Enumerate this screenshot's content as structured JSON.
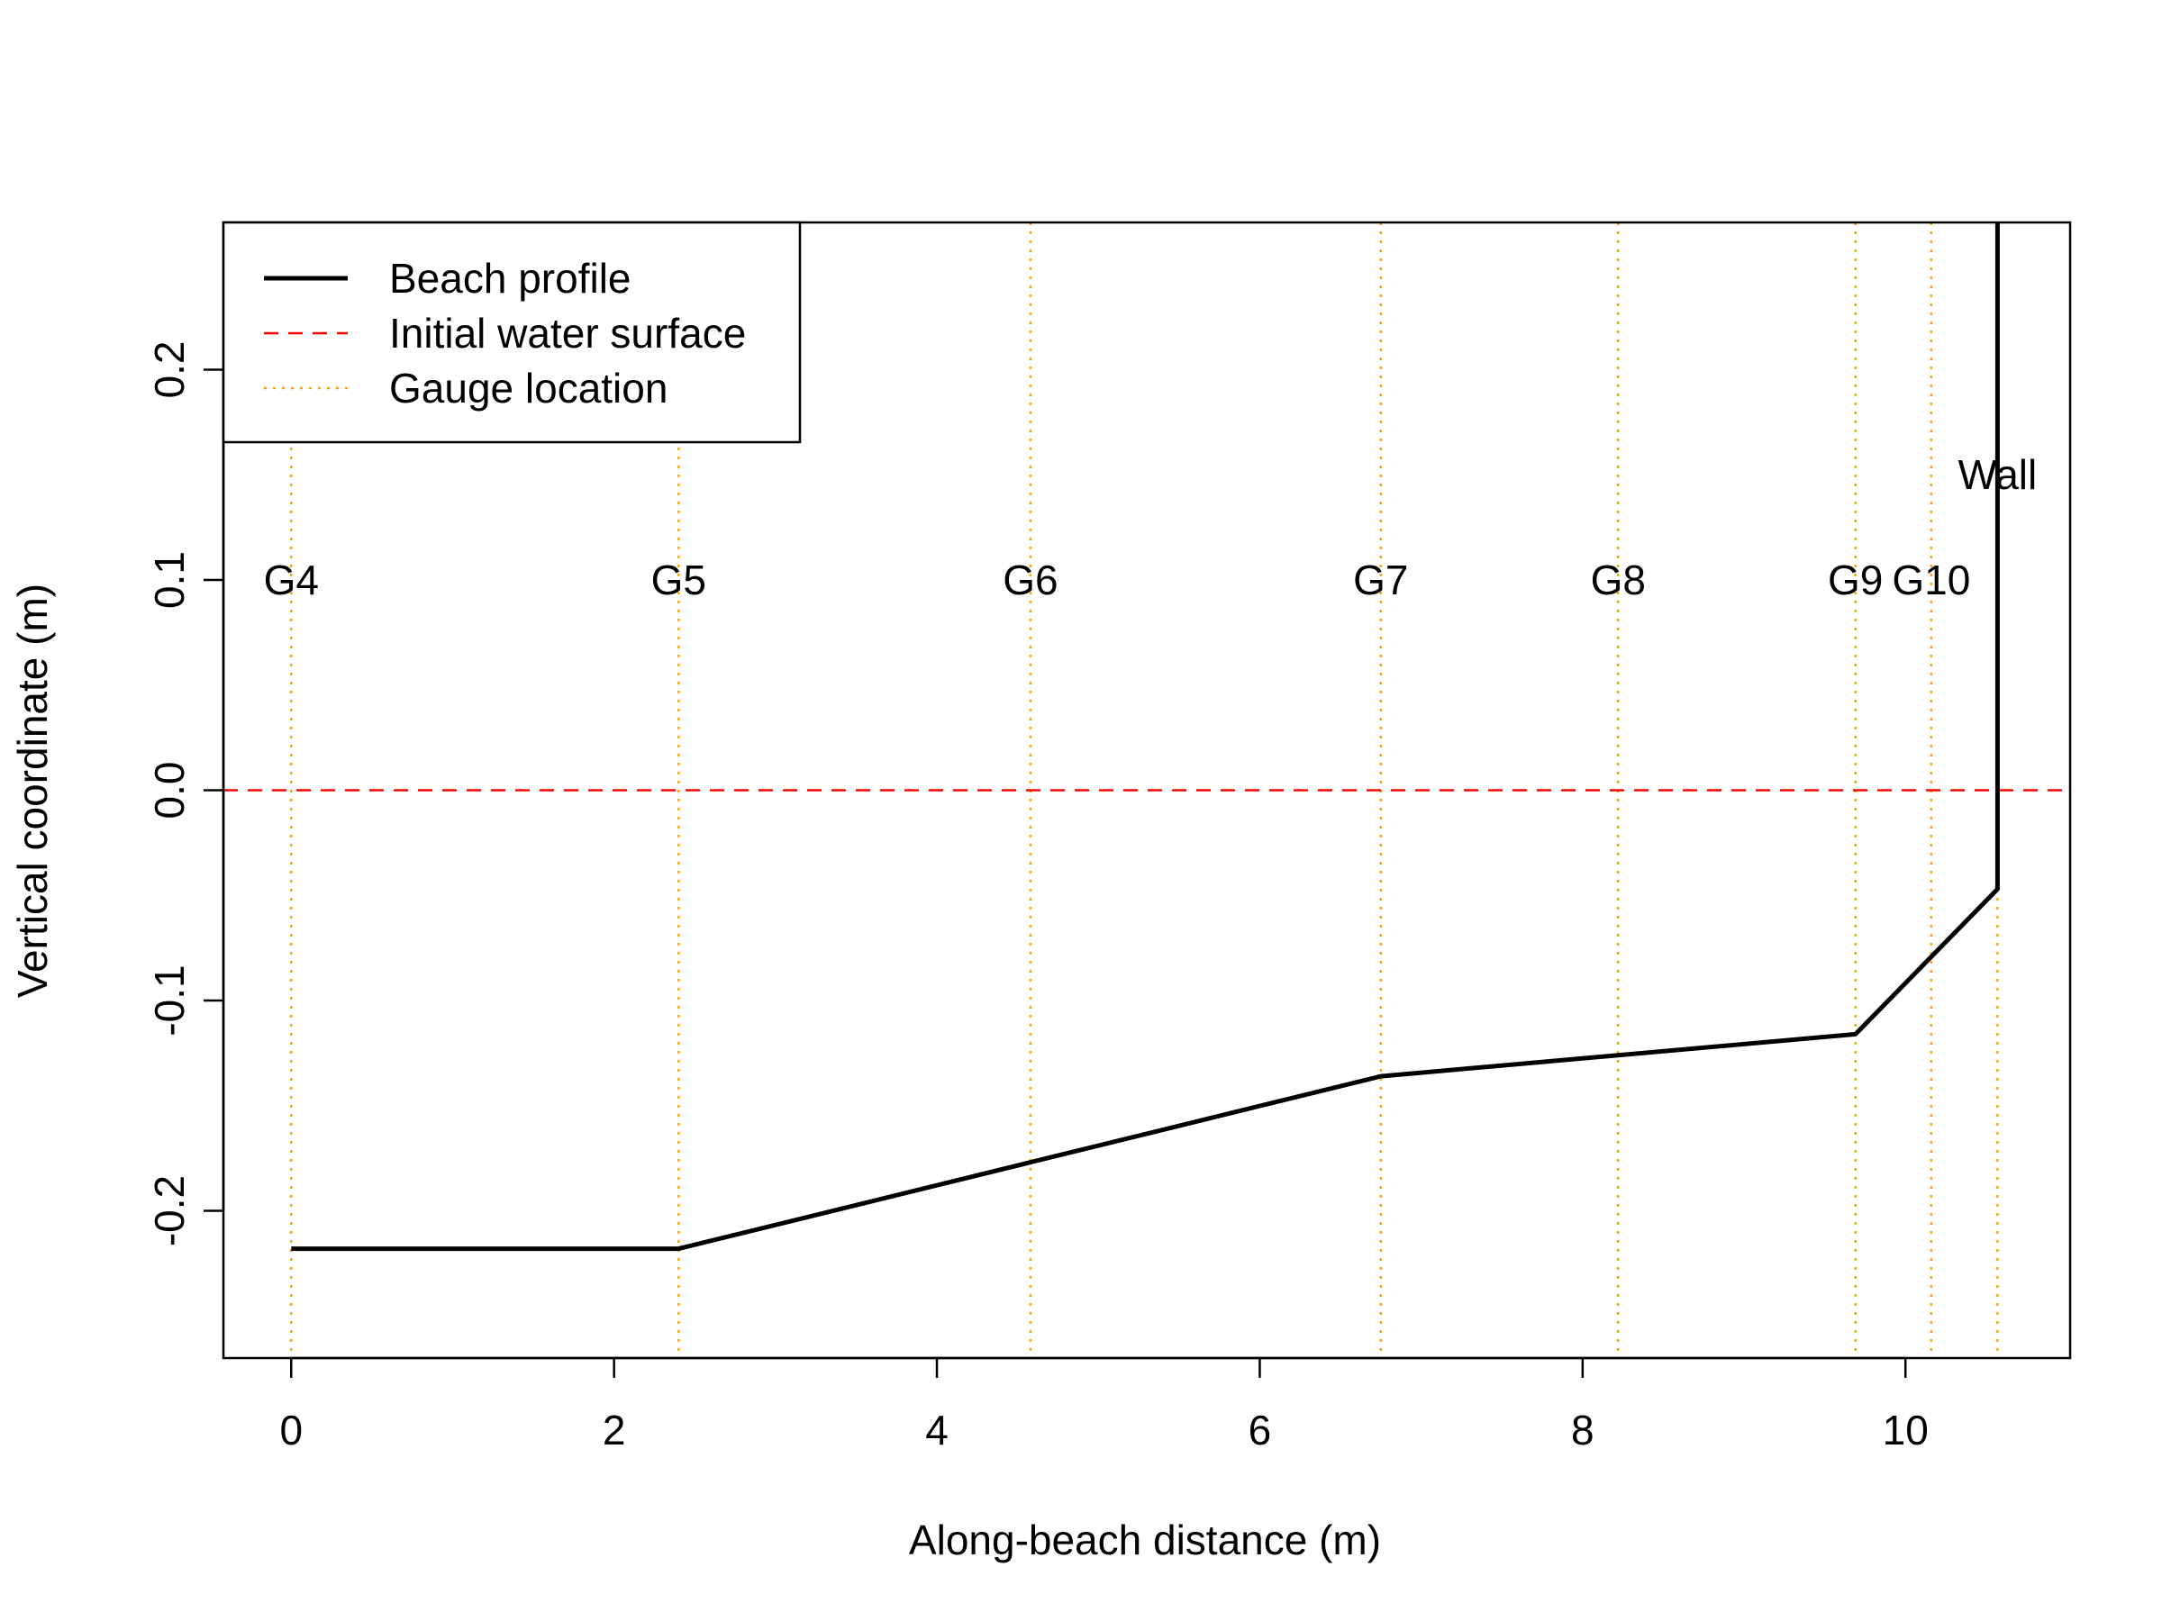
{
  "chart_data": {
    "type": "line",
    "title": "",
    "xlabel": "Along-beach distance (m)",
    "ylabel": "Vertical coordinate (m)",
    "xlim": [
      -0.42,
      11.02
    ],
    "ylim": [
      -0.27,
      0.27
    ],
    "x_ticks": [
      0,
      2,
      4,
      6,
      8,
      10
    ],
    "y_ticks": [
      -0.2,
      -0.1,
      0.0,
      0.1,
      0.2
    ],
    "x_tick_labels": [
      "0",
      "2",
      "4",
      "6",
      "8",
      "10"
    ],
    "y_tick_labels": [
      "-0.2",
      "-0.1",
      "0.0",
      "0.1",
      "0.2"
    ],
    "grid": false,
    "legend": {
      "position": "top-left",
      "entries": [
        {
          "label": "Beach profile",
          "color": "#000000",
          "style": "solid"
        },
        {
          "label": "Initial water surface",
          "color": "#ff0000",
          "style": "dashed"
        },
        {
          "label": "Gauge location",
          "color": "#ffa500",
          "style": "dotted"
        }
      ]
    },
    "series": [
      {
        "name": "Beach profile",
        "color": "#000000",
        "x": [
          0.0,
          2.4,
          6.75,
          9.69,
          10.57,
          10.57
        ],
        "y": [
          -0.218,
          -0.218,
          -0.136,
          -0.116,
          -0.047,
          0.27
        ]
      }
    ],
    "water_surface": {
      "y": 0.0,
      "color": "#ff0000"
    },
    "gauges": [
      {
        "label": "G4",
        "x": 0.0
      },
      {
        "label": "G5",
        "x": 2.4
      },
      {
        "label": "G6",
        "x": 4.58
      },
      {
        "label": "G7",
        "x": 6.75
      },
      {
        "label": "G8",
        "x": 8.22
      },
      {
        "label": "G9",
        "x": 9.69
      },
      {
        "label": "G10",
        "x": 10.16
      }
    ],
    "gauge_color": "#ffa500",
    "gauge_label_y": 0.1,
    "wall": {
      "label": "Wall",
      "x": 10.57,
      "label_y": 0.15
    }
  }
}
